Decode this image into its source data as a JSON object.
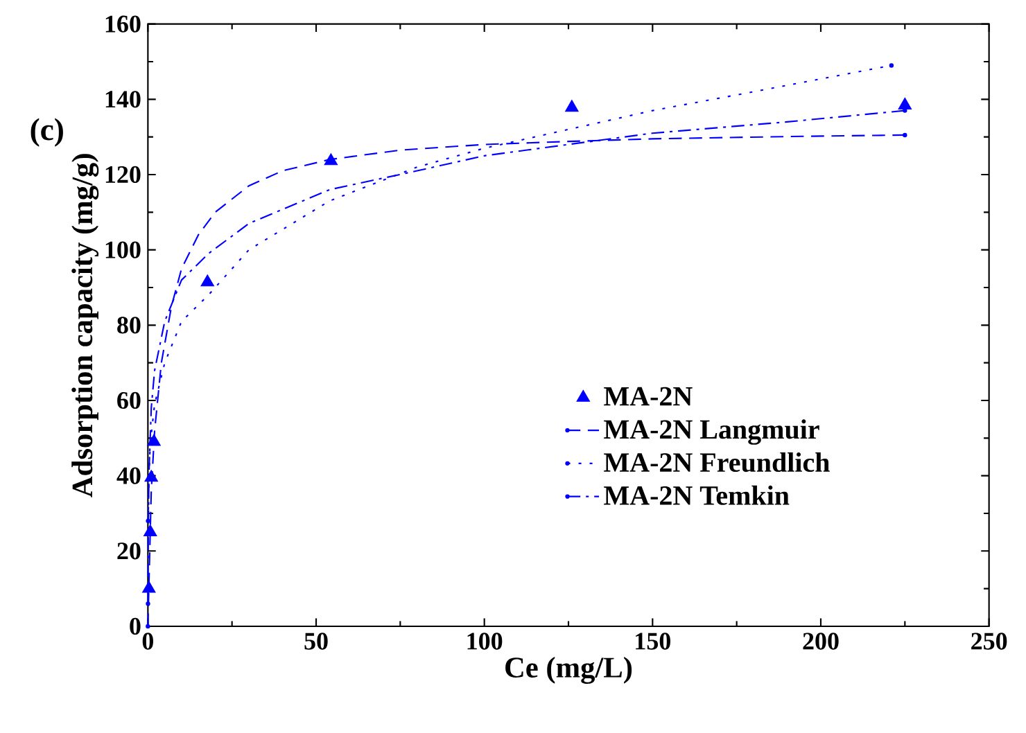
{
  "chart_data": {
    "type": "line",
    "xlabel": "Ce (mg/L)",
    "ylabel": "Adsorption capacity (mg/g)",
    "annotations": [
      "(c)"
    ],
    "xlim": [
      0,
      250
    ],
    "ylim": [
      0,
      160
    ],
    "xticks": [
      0,
      50,
      100,
      150,
      200,
      250
    ],
    "yticks": [
      0,
      20,
      40,
      60,
      80,
      100,
      120,
      140,
      160
    ],
    "legend": "right",
    "grid": false,
    "series": [
      {
        "name": "MA-2N",
        "type": "scatter",
        "marker": "triangle",
        "color": "#0000ff",
        "x": [
          0.3,
          0.7,
          1,
          1.8,
          17.7,
          54.4,
          126,
          225
        ],
        "values": [
          10,
          25,
          39.5,
          49,
          91.4,
          123.6,
          137.8,
          138.4
        ]
      },
      {
        "name": "MA-2N Langmuir",
        "line_style": "dashed",
        "color": "#0000ff",
        "x": [
          0,
          1,
          2,
          4,
          7,
          10,
          15,
          20,
          30,
          40,
          54,
          75,
          100,
          125,
          150,
          190,
          225
        ],
        "values": [
          0,
          36,
          52,
          70,
          85,
          95,
          104,
          110,
          117,
          121,
          124,
          126.5,
          128,
          128.8,
          129.5,
          130.1,
          130.5
        ]
      },
      {
        "name": "MA-2N Freundlich",
        "line_style": "dotted",
        "color": "#0000ff",
        "x": [
          0.05,
          0.5,
          1,
          2,
          5,
          10,
          18,
          30,
          54,
          80,
          100,
          125,
          150,
          180,
          221
        ],
        "values": [
          28,
          45,
          51,
          59,
          70,
          81,
          88,
          100,
          113,
          122,
          127,
          132,
          137,
          142,
          149
        ]
      },
      {
        "name": "MA-2N Temkin",
        "line_style": "dashdot",
        "color": "#0000ff",
        "x": [
          0.03,
          0.1,
          0.3,
          1,
          2,
          5,
          10,
          18,
          30,
          54,
          80,
          100,
          125,
          150,
          190,
          225
        ],
        "values": [
          6,
          23,
          40,
          58,
          68,
          81,
          92,
          99,
          107,
          116,
          121,
          125,
          128,
          131,
          134,
          137
        ]
      }
    ]
  }
}
